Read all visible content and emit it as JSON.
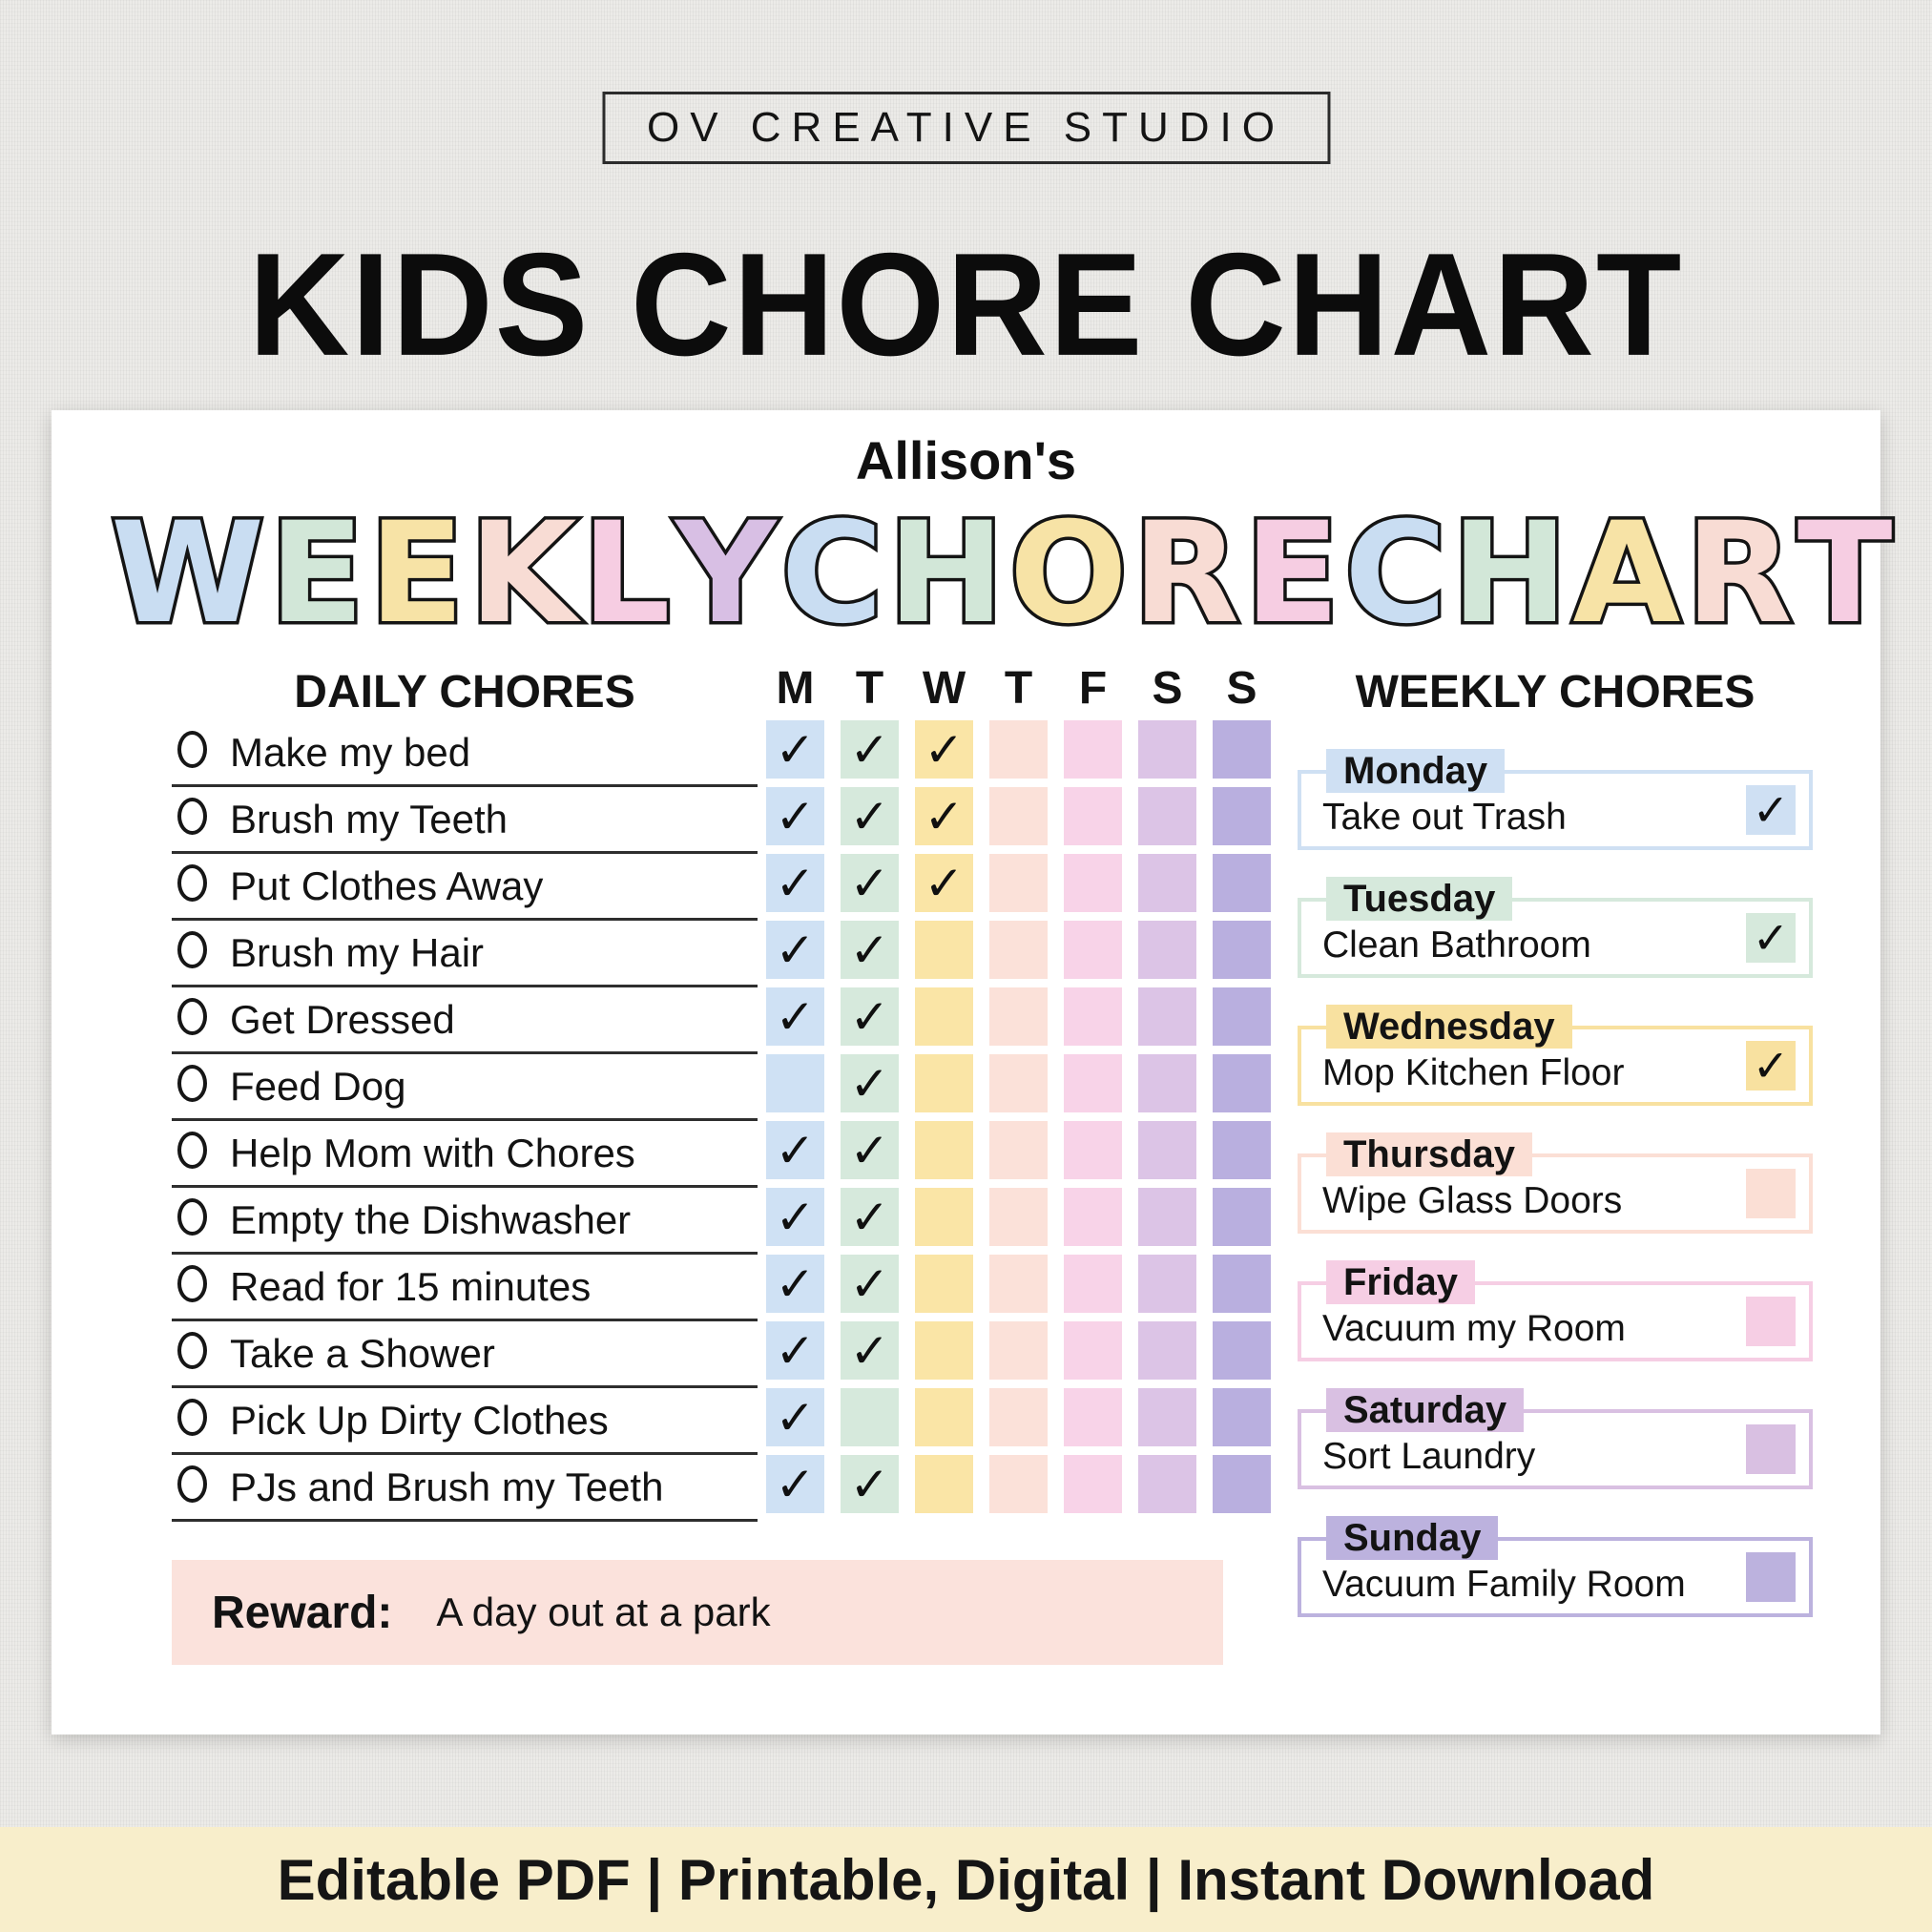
{
  "brand": {
    "name": "OV CREATIVE STUDIO"
  },
  "title": "KIDS CHORE CHART",
  "chart": {
    "owner": "Allison's",
    "bubble_title": {
      "words": [
        "WEEKLY",
        "CHORE",
        "CHART"
      ]
    },
    "check_glyph": "✓",
    "daily": {
      "heading": "DAILY CHORES",
      "day_headers": [
        "M",
        "T",
        "W",
        "T",
        "F",
        "S",
        "S"
      ],
      "chores": [
        {
          "label": "Make my bed",
          "checks": [
            true,
            true,
            true,
            false,
            false,
            false,
            false
          ]
        },
        {
          "label": "Brush my Teeth",
          "checks": [
            true,
            true,
            true,
            false,
            false,
            false,
            false
          ]
        },
        {
          "label": "Put Clothes Away",
          "checks": [
            true,
            true,
            true,
            false,
            false,
            false,
            false
          ]
        },
        {
          "label": "Brush my Hair",
          "checks": [
            true,
            true,
            false,
            false,
            false,
            false,
            false
          ]
        },
        {
          "label": "Get Dressed",
          "checks": [
            true,
            true,
            false,
            false,
            false,
            false,
            false
          ]
        },
        {
          "label": "Feed Dog",
          "checks": [
            false,
            true,
            false,
            false,
            false,
            false,
            false
          ]
        },
        {
          "label": "Help Mom with Chores",
          "checks": [
            true,
            true,
            false,
            false,
            false,
            false,
            false
          ]
        },
        {
          "label": "Empty the Dishwasher",
          "checks": [
            true,
            true,
            false,
            false,
            false,
            false,
            false
          ]
        },
        {
          "label": "Read for 15 minutes",
          "checks": [
            true,
            true,
            false,
            false,
            false,
            false,
            false
          ]
        },
        {
          "label": "Take a Shower",
          "checks": [
            true,
            true,
            false,
            false,
            false,
            false,
            false
          ]
        },
        {
          "label": "Pick Up Dirty Clothes",
          "checks": [
            true,
            false,
            false,
            false,
            false,
            false,
            false
          ]
        },
        {
          "label": "PJs and Brush my Teeth",
          "checks": [
            true,
            true,
            false,
            false,
            false,
            false,
            false
          ]
        }
      ]
    },
    "weekly": {
      "heading": "WEEKLY CHORES",
      "items": [
        {
          "day": "Monday",
          "chore": "Take out Trash",
          "checked": true
        },
        {
          "day": "Tuesday",
          "chore": "Clean Bathroom",
          "checked": true
        },
        {
          "day": "Wednesday",
          "chore": "Mop Kitchen Floor",
          "checked": true
        },
        {
          "day": "Thursday",
          "chore": "Wipe Glass Doors",
          "checked": false
        },
        {
          "day": "Friday",
          "chore": "Vacuum my Room",
          "checked": false
        },
        {
          "day": "Saturday",
          "chore": "Sort Laundry",
          "checked": false
        },
        {
          "day": "Sunday",
          "chore": "Vacuum Family Room",
          "checked": false
        }
      ]
    },
    "reward": {
      "label": "Reward:",
      "value": "A day out at a park"
    }
  },
  "footer": {
    "text": "Editable PDF | Printable, Digital | Instant Download"
  },
  "colors": {
    "letter_cycle": [
      "#c9ddf2",
      "#d2e7d8",
      "#f7e3a6",
      "#f8dcd4",
      "#f6cde2",
      "#d8bfe4"
    ],
    "column_tints": [
      "#cfe1f4",
      "#d6e9dc",
      "#fae5a6",
      "#fbe1d9",
      "#f8d3e8",
      "#dcc4e6",
      "#b9afdf"
    ],
    "weekly_tints": [
      "#cfe0f3",
      "#d6e9dc",
      "#f8e1a0",
      "#fbdfd5",
      "#f6cee4",
      "#d9c0e2",
      "#bcb2de"
    ],
    "reward_bg": "#fbe2dc",
    "footer_bg": "#f8eecb",
    "card_bg": "#ffffff",
    "page_bg": "#ecebe8",
    "text": "#111111"
  }
}
